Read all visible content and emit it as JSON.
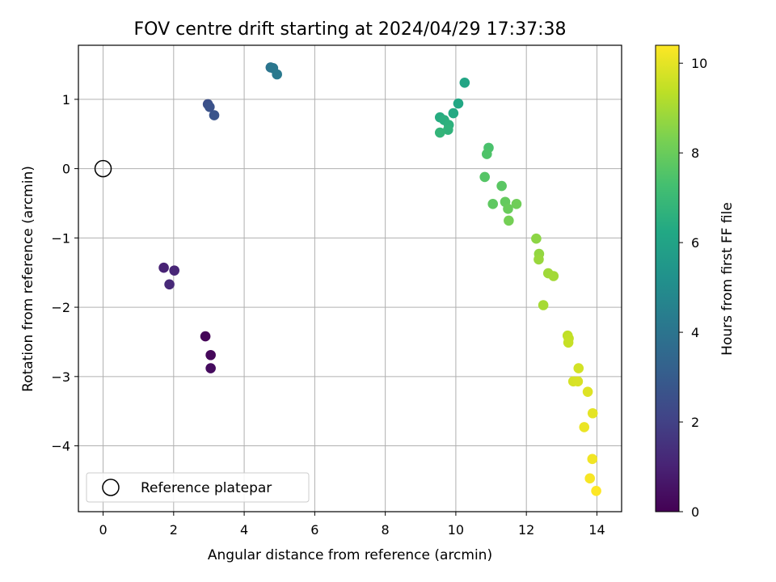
{
  "chart_data": {
    "type": "scatter",
    "title": "FOV centre drift starting at 2024/04/29 17:37:38",
    "xlabel": "Angular distance from reference (arcmin)",
    "ylabel": "Rotation from reference (arcmin)",
    "xlim": [
      -0.7,
      14.7
    ],
    "ylim": [
      -4.95,
      1.78
    ],
    "xticks": [
      0,
      2,
      4,
      6,
      8,
      10,
      12,
      14
    ],
    "yticks": [
      1,
      0,
      -1,
      -2,
      -3,
      -4
    ],
    "xtick_labels": [
      "0",
      "2",
      "4",
      "6",
      "8",
      "10",
      "12",
      "14"
    ],
    "ytick_labels": [
      "1",
      "0",
      "−1",
      "−2",
      "−3",
      "−4"
    ],
    "grid": true,
    "colormap": "viridis",
    "colorbar": {
      "label": "Hours from first FF file",
      "range": [
        0,
        10.4
      ],
      "ticks": [
        0,
        2,
        4,
        6,
        8,
        10
      ],
      "tick_labels": [
        "0",
        "2",
        "4",
        "6",
        "8",
        "10"
      ]
    },
    "legend": {
      "placement": "lower-left",
      "label": "Reference platepar"
    },
    "reference_point": {
      "x": 0,
      "y": 0
    },
    "points": [
      {
        "x": 2.9,
        "y": -2.42,
        "t": 0.1
      },
      {
        "x": 3.05,
        "y": -2.69,
        "t": 0.2
      },
      {
        "x": 3.05,
        "y": -2.88,
        "t": 0.3
      },
      {
        "x": 1.72,
        "y": -1.43,
        "t": 1.0
      },
      {
        "x": 2.02,
        "y": -1.47,
        "t": 1.1
      },
      {
        "x": 1.88,
        "y": -1.67,
        "t": 1.2
      },
      {
        "x": 2.97,
        "y": 0.93,
        "t": 2.5
      },
      {
        "x": 3.02,
        "y": 0.89,
        "t": 2.6
      },
      {
        "x": 3.15,
        "y": 0.77,
        "t": 2.7
      },
      {
        "x": 4.75,
        "y": 1.46,
        "t": 4.0
      },
      {
        "x": 4.82,
        "y": 1.45,
        "t": 4.1
      },
      {
        "x": 4.93,
        "y": 1.36,
        "t": 4.2
      },
      {
        "x": 10.25,
        "y": 1.24,
        "t": 6.1
      },
      {
        "x": 10.07,
        "y": 0.94,
        "t": 6.2
      },
      {
        "x": 9.93,
        "y": 0.8,
        "t": 6.3
      },
      {
        "x": 9.55,
        "y": 0.74,
        "t": 6.4
      },
      {
        "x": 9.67,
        "y": 0.7,
        "t": 6.5
      },
      {
        "x": 9.8,
        "y": 0.63,
        "t": 6.6
      },
      {
        "x": 9.78,
        "y": 0.56,
        "t": 6.7
      },
      {
        "x": 9.55,
        "y": 0.52,
        "t": 6.8
      },
      {
        "x": 10.93,
        "y": 0.3,
        "t": 7.4
      },
      {
        "x": 10.88,
        "y": 0.21,
        "t": 7.5
      },
      {
        "x": 10.82,
        "y": -0.12,
        "t": 7.6
      },
      {
        "x": 11.3,
        "y": -0.25,
        "t": 7.7
      },
      {
        "x": 11.05,
        "y": -0.51,
        "t": 7.8
      },
      {
        "x": 11.4,
        "y": -0.48,
        "t": 7.9
      },
      {
        "x": 11.48,
        "y": -0.58,
        "t": 8.0
      },
      {
        "x": 11.72,
        "y": -0.51,
        "t": 8.1
      },
      {
        "x": 11.5,
        "y": -0.75,
        "t": 8.2
      },
      {
        "x": 12.28,
        "y": -1.01,
        "t": 8.6
      },
      {
        "x": 12.36,
        "y": -1.23,
        "t": 8.7
      },
      {
        "x": 12.35,
        "y": -1.31,
        "t": 8.8
      },
      {
        "x": 12.62,
        "y": -1.51,
        "t": 8.9
      },
      {
        "x": 12.77,
        "y": -1.55,
        "t": 8.95
      },
      {
        "x": 12.48,
        "y": -1.97,
        "t": 9.0
      },
      {
        "x": 13.17,
        "y": -2.41,
        "t": 9.4
      },
      {
        "x": 13.2,
        "y": -2.45,
        "t": 9.45
      },
      {
        "x": 13.19,
        "y": -2.51,
        "t": 9.5
      },
      {
        "x": 13.48,
        "y": -2.88,
        "t": 9.7
      },
      {
        "x": 13.33,
        "y": -3.07,
        "t": 9.75
      },
      {
        "x": 13.46,
        "y": -3.07,
        "t": 9.8
      },
      {
        "x": 13.74,
        "y": -3.22,
        "t": 9.9
      },
      {
        "x": 13.88,
        "y": -3.53,
        "t": 10.0
      },
      {
        "x": 13.64,
        "y": -3.73,
        "t": 10.1
      },
      {
        "x": 13.87,
        "y": -4.19,
        "t": 10.2
      },
      {
        "x": 13.8,
        "y": -4.47,
        "t": 10.3
      },
      {
        "x": 13.98,
        "y": -4.65,
        "t": 10.4
      }
    ]
  }
}
